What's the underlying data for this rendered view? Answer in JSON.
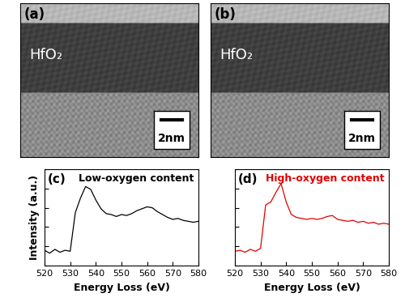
{
  "images": [
    {
      "label": "(a)",
      "layer": "HfO₂",
      "scale_bar": "2nm"
    },
    {
      "label": "(b)",
      "layer": "HfO₂",
      "scale_bar": "2nm"
    }
  ],
  "chart_data": [
    {
      "type": "line",
      "panel": "(c)",
      "title": "Low-oxygen content",
      "x_label": "Energy Loss (eV)",
      "y_label": "Intensity (a.u.)",
      "x": [
        520,
        522,
        524,
        526,
        528,
        530,
        532,
        534,
        536,
        538,
        540,
        542,
        544,
        546,
        548,
        550,
        552,
        554,
        556,
        558,
        560,
        562,
        564,
        566,
        568,
        570,
        572,
        574,
        576,
        578,
        580
      ],
      "values": [
        1.6,
        1.3,
        1.7,
        1.4,
        1.6,
        1.5,
        5.5,
        7.0,
        8.2,
        7.9,
        6.8,
        5.9,
        5.4,
        5.3,
        5.1,
        5.3,
        5.2,
        5.4,
        5.7,
        5.9,
        6.1,
        6.0,
        5.6,
        5.3,
        5.0,
        4.8,
        4.9,
        4.7,
        4.6,
        4.5,
        4.6
      ],
      "color": "#000000",
      "xlim": [
        520,
        580
      ],
      "xticks": [
        520,
        530,
        540,
        550,
        560,
        570,
        580
      ],
      "ylim": [
        0,
        10
      ],
      "yticks": [
        0,
        2,
        4,
        6,
        8,
        10
      ],
      "tick_labels": "x"
    },
    {
      "type": "line",
      "panel": "(d)",
      "title": "High-oxygen content",
      "x_label": "Energy Loss (eV)",
      "x": [
        520,
        522,
        524,
        526,
        528,
        530,
        532,
        534,
        536,
        538,
        540,
        542,
        544,
        546,
        548,
        550,
        552,
        554,
        556,
        558,
        560,
        562,
        564,
        566,
        568,
        570,
        572,
        574,
        576,
        578,
        580
      ],
      "values": [
        1.5,
        1.6,
        1.4,
        1.7,
        1.5,
        1.8,
        6.3,
        6.6,
        7.6,
        8.5,
        6.6,
        5.3,
        5.0,
        4.9,
        4.8,
        4.9,
        4.8,
        4.9,
        5.1,
        5.2,
        4.8,
        4.7,
        4.6,
        4.7,
        4.5,
        4.6,
        4.4,
        4.5,
        4.3,
        4.4,
        4.3
      ],
      "color": "#e00000",
      "xlim": [
        520,
        580
      ],
      "xticks": [
        520,
        530,
        540,
        550,
        560,
        570,
        580
      ],
      "ylim": [
        0,
        10
      ],
      "yticks": [
        0,
        2,
        4,
        6,
        8,
        10
      ],
      "tick_labels": "x"
    }
  ]
}
